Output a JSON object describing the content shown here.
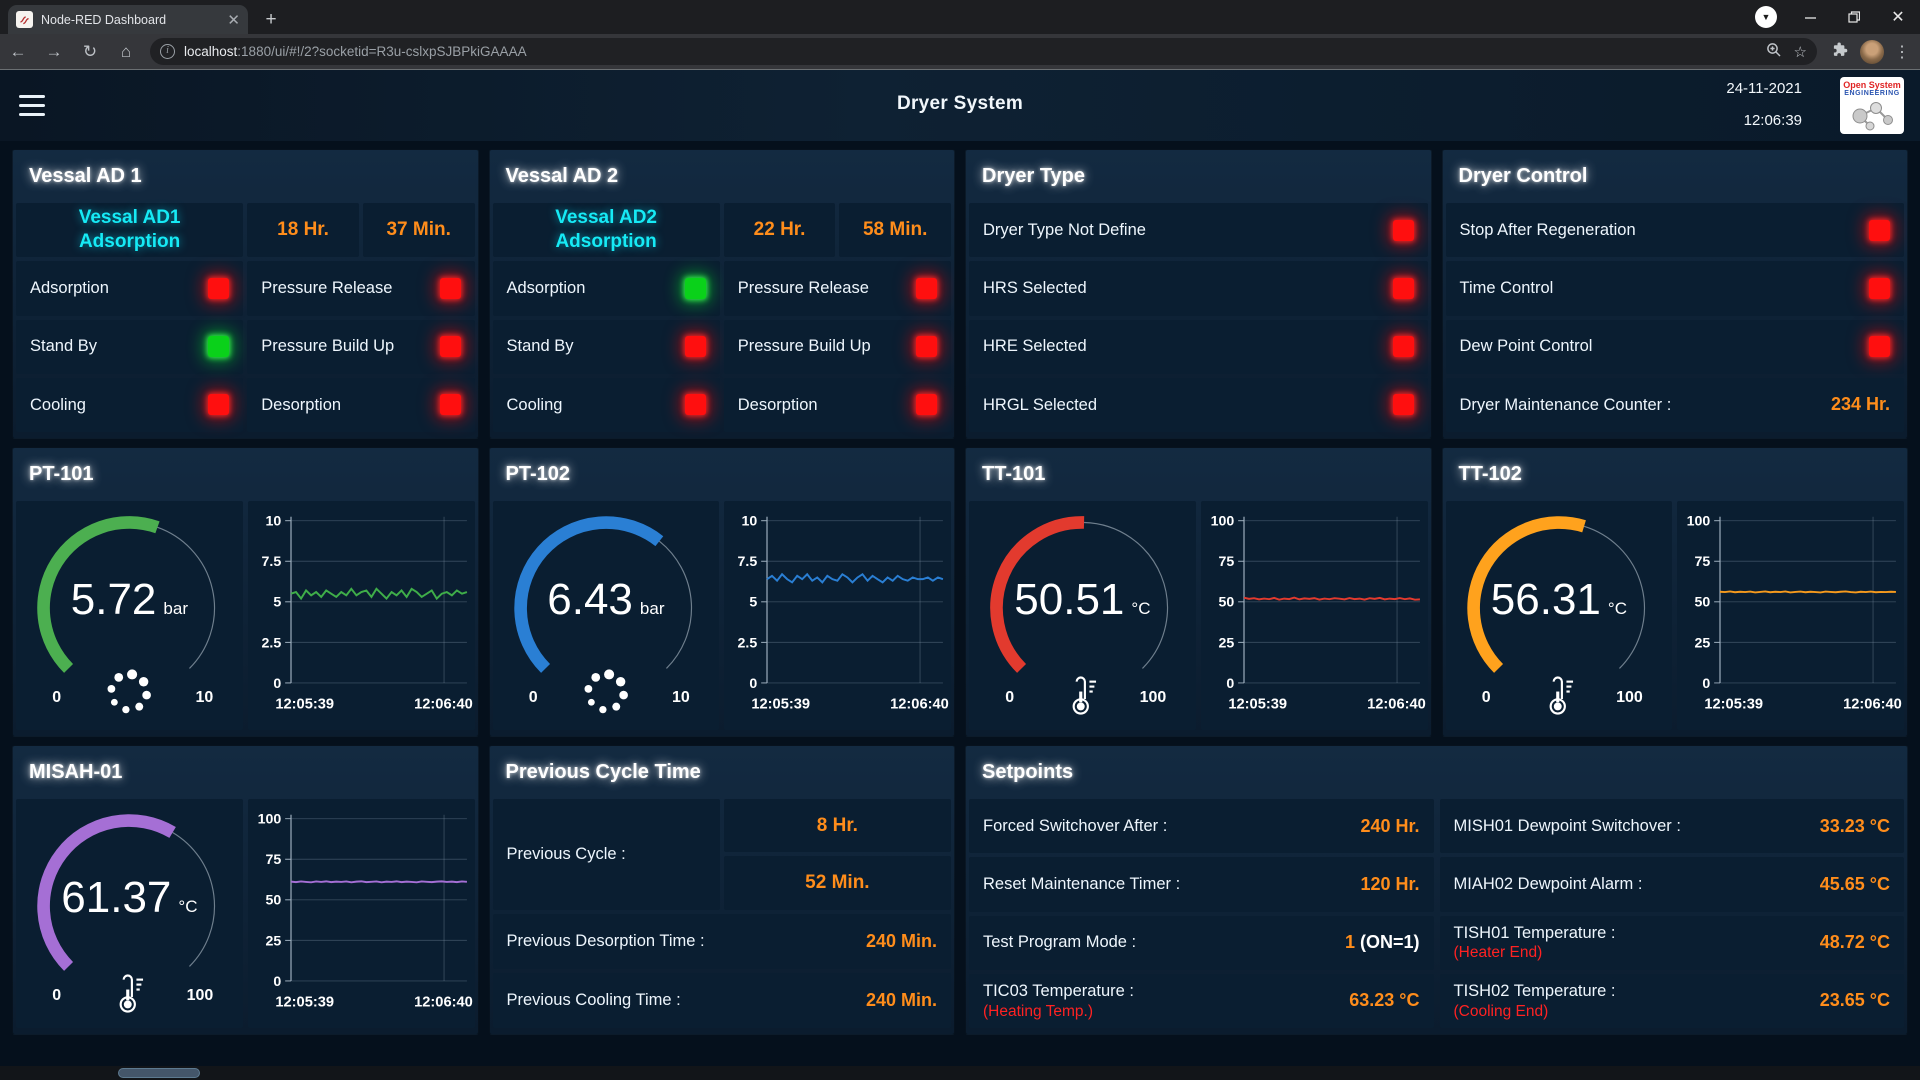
{
  "browser": {
    "tab_title": "Node-RED Dashboard",
    "url_host": "localhost",
    "url_rest": ":1880/ui/#!/2?socketid=R3u-cslxpSJBPkiGAAAA"
  },
  "header": {
    "title": "Dryer System",
    "date": "24-11-2021",
    "time": "12:06:39",
    "logo_line1": "Open System",
    "logo_line2": "ENGINEERING"
  },
  "colors": {
    "accent_cyan": "#16eaf5",
    "accent_orange": "#ff8d1b",
    "alert_red": "#ff2222",
    "led_red": "#ff0f0f",
    "led_green": "#0ad11a"
  },
  "panels": {
    "vessal1": {
      "title": "Vessal AD 1",
      "status_line1": "Vessal AD1",
      "status_line2": "Adsorption",
      "hours": "18 Hr.",
      "minutes": "37 Min.",
      "items": [
        {
          "label": "Adsorption",
          "led": "red"
        },
        {
          "label": "Pressure Release",
          "led": "red"
        },
        {
          "label": "Stand By",
          "led": "green"
        },
        {
          "label": "Pressure Build Up",
          "led": "red"
        },
        {
          "label": "Cooling",
          "led": "red"
        },
        {
          "label": "Desorption",
          "led": "red"
        }
      ]
    },
    "vessal2": {
      "title": "Vessal AD 2",
      "status_line1": "Vessal AD2",
      "status_line2": "Adsorption",
      "hours": "22 Hr.",
      "minutes": "58 Min.",
      "items": [
        {
          "label": "Adsorption",
          "led": "green"
        },
        {
          "label": "Pressure Release",
          "led": "red"
        },
        {
          "label": "Stand By",
          "led": "red"
        },
        {
          "label": "Pressure Build Up",
          "led": "red"
        },
        {
          "label": "Cooling",
          "led": "red"
        },
        {
          "label": "Desorption",
          "led": "red"
        }
      ]
    },
    "dryer_type": {
      "title": "Dryer Type",
      "items": [
        {
          "label": "Dryer Type Not Define",
          "led": "red"
        },
        {
          "label": "HRS Selected",
          "led": "red"
        },
        {
          "label": "HRE Selected",
          "led": "red"
        },
        {
          "label": "HRGL Selected",
          "led": "red"
        }
      ]
    },
    "dryer_control": {
      "title": "Dryer Control",
      "items": [
        {
          "label": "Stop After Regeneration",
          "led": "red"
        },
        {
          "label": "Time Control",
          "led": "red"
        },
        {
          "label": "Dew Point Control",
          "led": "red"
        },
        {
          "label": "Dryer Maintenance Counter :",
          "value": "234 Hr."
        }
      ]
    },
    "prev_cycle": {
      "title": "Previous Cycle Time",
      "cycle_label": "Previous Cycle :",
      "cycle_hours": "8 Hr.",
      "cycle_minutes": "52 Min.",
      "rows": [
        {
          "label": "Previous Desorption Time :",
          "value": "240 Min."
        },
        {
          "label": "Previous Cooling Time :",
          "value": "240 Min."
        }
      ]
    },
    "setpoints": {
      "title": "Setpoints",
      "left": [
        {
          "label": "Forced Switchover After :",
          "value": "240 Hr."
        },
        {
          "label": "Reset Maintenance Timer :",
          "value": "120 Hr."
        },
        {
          "label": "Test Program Mode :",
          "value": "1",
          "value_suffix": " (ON=1)"
        },
        {
          "label": "TIC03 Temperature :",
          "sublabel": "(Heating Temp.)",
          "value": "63.23 °C"
        }
      ],
      "right": [
        {
          "label": "MISH01 Dewpoint Switchover :",
          "value": "33.23 °C"
        },
        {
          "label": "MIAH02 Dewpoint Alarm :",
          "value": "45.65 °C"
        },
        {
          "label": "TISH01 Temperature :",
          "sublabel": "(Heater End)",
          "value": "48.72 °C"
        },
        {
          "label": "TISH02 Temperature :",
          "sublabel": "(Cooling End)",
          "value": "23.65 °C"
        }
      ]
    }
  },
  "chart_data": [
    {
      "panel": "PT-101",
      "type": "gauge+line",
      "gauge": {
        "value": "5.72",
        "unit": "bar",
        "min": "0",
        "max": "10",
        "color": "#4caf50",
        "icon": "dots-spinner"
      },
      "trend": {
        "type": "line",
        "color": "#3fae49",
        "ylim": [
          0,
          10
        ],
        "yticks": [
          "10",
          "7.5",
          "5",
          "2.5",
          "0"
        ],
        "x_start": "12:05:39",
        "x_end": "12:06:40",
        "values": [
          5.5,
          5.6,
          5.2,
          5.7,
          5.4,
          5.6,
          5.3,
          5.7,
          5.5,
          5.3,
          5.6,
          5.4,
          5.8,
          5.4,
          5.6,
          5.7,
          5.3,
          5.8,
          5.5,
          5.2,
          5.6,
          5.4,
          5.7,
          5.3,
          5.8,
          5.6,
          5.3,
          5.5,
          5.7,
          5.2,
          5.5,
          5.6,
          5.4,
          5.7,
          5.5,
          5.6
        ]
      }
    },
    {
      "panel": "PT-102",
      "type": "gauge+line",
      "gauge": {
        "value": "6.43",
        "unit": "bar",
        "min": "0",
        "max": "10",
        "color": "#2a7fd4",
        "icon": "dots-spinner"
      },
      "trend": {
        "type": "line",
        "color": "#2a7fd4",
        "ylim": [
          0,
          10
        ],
        "yticks": [
          "10",
          "7.5",
          "5",
          "2.5",
          "0"
        ],
        "x_start": "12:05:39",
        "x_end": "12:06:40",
        "values": [
          6.4,
          6.6,
          6.3,
          6.7,
          6.4,
          6.2,
          6.6,
          6.4,
          6.7,
          6.3,
          6.5,
          6.2,
          6.6,
          6.4,
          6.3,
          6.7,
          6.5,
          6.2,
          6.5,
          6.7,
          6.3,
          6.6,
          6.4,
          6.2,
          6.5,
          6.3,
          6.6,
          6.4,
          6.3,
          6.5,
          6.4,
          6.4,
          6.5,
          6.3,
          6.5,
          6.4
        ]
      }
    },
    {
      "panel": "TT-101",
      "type": "gauge+line",
      "gauge": {
        "value": "50.51",
        "unit": "°C",
        "min": "0",
        "max": "100",
        "color": "#e23a2e",
        "icon": "thermometer"
      },
      "trend": {
        "type": "line",
        "color": "#e23a2e",
        "ylim": [
          0,
          100
        ],
        "yticks": [
          "100",
          "75",
          "50",
          "25",
          "0"
        ],
        "x_start": "12:05:39",
        "x_end": "12:06:40",
        "values": [
          52.5,
          51.8,
          52.2,
          51.5,
          52.0,
          51.6,
          52.4,
          51.3,
          52.0,
          51.7,
          52.6,
          51.5,
          52.1,
          51.8,
          52.3,
          51.4,
          52.0,
          51.6,
          52.2,
          51.9,
          51.5,
          52.3,
          51.7,
          52.0,
          51.4,
          52.2,
          51.8,
          52.4,
          51.5,
          52.0,
          51.7,
          52.3,
          51.6,
          52.1,
          51.3,
          51.5
        ]
      }
    },
    {
      "panel": "TT-102",
      "type": "gauge+line",
      "gauge": {
        "value": "56.31",
        "unit": "°C",
        "min": "0",
        "max": "100",
        "color": "#ffa21d",
        "icon": "thermometer"
      },
      "trend": {
        "type": "line",
        "color": "#f59a1d",
        "ylim": [
          0,
          100
        ],
        "yticks": [
          "100",
          "75",
          "50",
          "25",
          "0"
        ],
        "x_start": "12:05:39",
        "x_end": "12:06:40",
        "values": [
          56.2,
          56.0,
          56.4,
          55.9,
          56.2,
          56.0,
          56.3,
          55.8,
          56.1,
          56.4,
          55.9,
          56.2,
          56.0,
          56.4,
          55.8,
          56.1,
          56.3,
          55.9,
          56.2,
          56.0,
          55.8,
          56.3,
          56.1,
          55.9,
          56.2,
          56.4,
          56.0,
          55.8,
          56.2,
          56.0,
          56.3,
          55.9,
          56.1,
          56.0,
          56.2,
          56.1
        ]
      }
    },
    {
      "panel": "MISAH-01",
      "type": "gauge+line",
      "gauge": {
        "value": "61.37",
        "unit": "°C",
        "min": "0",
        "max": "100",
        "color": "#a56fd5",
        "icon": "thermometer"
      },
      "trend": {
        "type": "line",
        "color": "#a56fd5",
        "ylim": [
          0,
          100
        ],
        "yticks": [
          "100",
          "75",
          "50",
          "25",
          "0"
        ],
        "x_start": "12:05:39",
        "x_end": "12:06:40",
        "values": [
          61.2,
          60.9,
          61.3,
          61.0,
          60.8,
          61.3,
          61.0,
          61.4,
          60.9,
          61.2,
          61.0,
          61.3,
          60.8,
          61.2,
          61.4,
          60.9,
          61.1,
          61.3,
          60.8,
          61.2,
          61.0,
          61.4,
          60.9,
          61.2,
          61.0,
          60.8,
          61.3,
          61.1,
          60.9,
          61.2,
          61.4,
          61.0,
          61.2,
          60.9,
          61.3,
          61.1
        ]
      }
    }
  ]
}
